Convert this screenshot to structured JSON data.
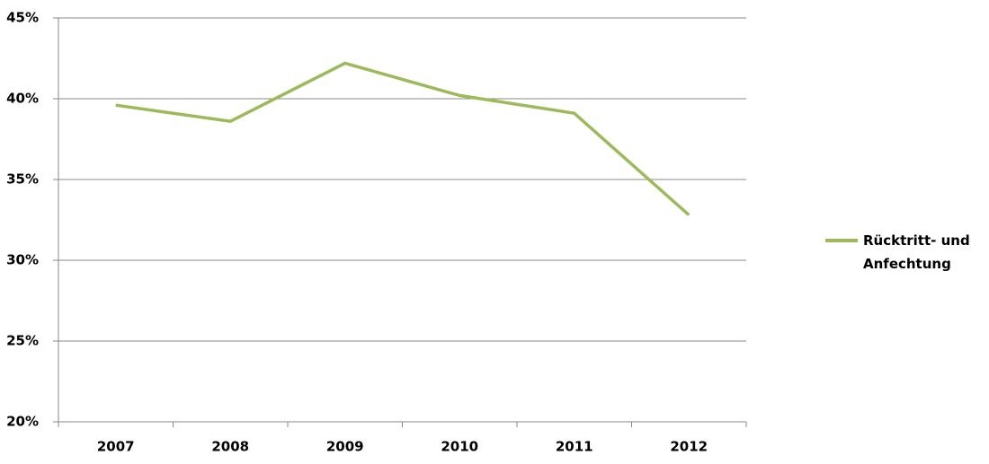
{
  "chart_data": {
    "type": "line",
    "categories": [
      "2007",
      "2008",
      "2009",
      "2010",
      "2011",
      "2012"
    ],
    "series": [
      {
        "name": "Rücktritt- und Anfechtung",
        "color": "#9bbb59",
        "values": [
          39.6,
          38.6,
          42.2,
          40.2,
          39.1,
          32.8
        ]
      }
    ],
    "ylim": [
      20,
      45
    ],
    "yticks": [
      {
        "value": 20,
        "label": "20%"
      },
      {
        "value": 25,
        "label": "25%"
      },
      {
        "value": 30,
        "label": "30%"
      },
      {
        "value": 35,
        "label": "35%"
      },
      {
        "value": 40,
        "label": "40%"
      },
      {
        "value": 45,
        "label": "45%"
      }
    ],
    "grid": true,
    "legend": "right"
  }
}
